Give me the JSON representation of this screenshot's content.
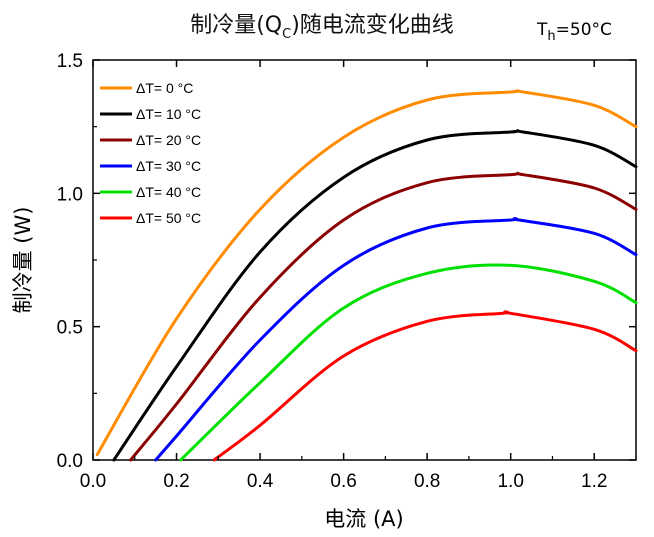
{
  "chart_data": {
    "type": "line",
    "title": "制冷量(QC)随电流变化曲线",
    "title_parts": {
      "main": "制冷量(Q",
      "sub": "C",
      "tail": ")随电流变化曲线"
    },
    "condition": "Th=50°C",
    "condition_parts": {
      "main": "T",
      "sub": "h",
      "tail": "=50°C"
    },
    "xlabel": "电流 (A)",
    "ylabel": "制冷量 (W)",
    "xlim": [
      0.0,
      1.3
    ],
    "ylim": [
      0.0,
      1.5
    ],
    "xticks": [
      "0.0",
      "0.2",
      "0.4",
      "0.6",
      "0.8",
      "1.0",
      "1.2"
    ],
    "yticks": [
      "0.0",
      "0.5",
      "1.0",
      "1.5"
    ],
    "legend_position": "top-left",
    "grid": false,
    "series": [
      {
        "name": "ΔT= 0 °C",
        "color": "#ff8c00",
        "x": [
          0.01,
          0.2,
          0.4,
          0.6,
          0.8,
          1.0,
          1.03,
          1.2,
          1.3
        ],
        "y": [
          0.02,
          0.53,
          0.94,
          1.21,
          1.35,
          1.38,
          1.38,
          1.33,
          1.25
        ]
      },
      {
        "name": "ΔT= 10 °C",
        "color": "#000000",
        "x": [
          0.05,
          0.2,
          0.4,
          0.6,
          0.8,
          1.0,
          1.03,
          1.2,
          1.3
        ],
        "y": [
          0.0,
          0.35,
          0.78,
          1.06,
          1.2,
          1.23,
          1.23,
          1.18,
          1.1
        ]
      },
      {
        "name": "ΔT= 20 °C",
        "color": "#8b0000",
        "x": [
          0.09,
          0.2,
          0.4,
          0.6,
          0.8,
          1.0,
          1.03,
          1.2,
          1.3
        ],
        "y": [
          0.0,
          0.21,
          0.61,
          0.9,
          1.04,
          1.07,
          1.07,
          1.02,
          0.94
        ]
      },
      {
        "name": "ΔT= 30 °C",
        "color": "#0000ff",
        "x": [
          0.15,
          0.2,
          0.4,
          0.6,
          0.8,
          1.0,
          1.02,
          1.2,
          1.3
        ],
        "y": [
          0.0,
          0.09,
          0.45,
          0.73,
          0.87,
          0.9,
          0.9,
          0.85,
          0.77
        ]
      },
      {
        "name": "ΔT= 40 °C",
        "color": "#00e000",
        "x": [
          0.21,
          0.4,
          0.6,
          0.8,
          1.0,
          1.2,
          1.3
        ],
        "y": [
          0.0,
          0.29,
          0.57,
          0.7,
          0.73,
          0.67,
          0.59
        ]
      },
      {
        "name": "ΔT= 50 °C",
        "color": "#ff0000",
        "x": [
          0.29,
          0.4,
          0.6,
          0.8,
          0.98,
          1.0,
          1.2,
          1.3
        ],
        "y": [
          0.0,
          0.13,
          0.39,
          0.52,
          0.55,
          0.55,
          0.49,
          0.41
        ]
      }
    ]
  }
}
